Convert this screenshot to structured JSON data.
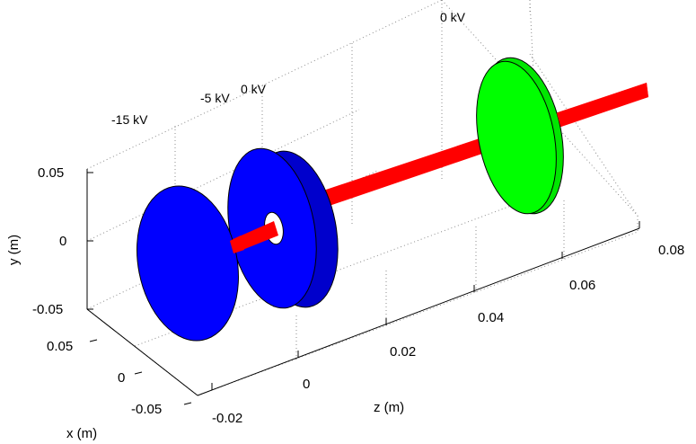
{
  "axes": {
    "x_label": "x (m)",
    "y_label": "y (m)",
    "z_label": "z (m)",
    "x_ticks": [
      "0.05",
      "0",
      "-0.05"
    ],
    "y_ticks": [
      "0.05",
      "0",
      "-0.05"
    ],
    "z_ticks": [
      "-0.02",
      "0",
      "0.02",
      "0.04",
      "0.06",
      "0.08"
    ]
  },
  "electrodes": [
    {
      "voltage_label": "-15 kV",
      "color": "#0000ff"
    },
    {
      "voltage_label": "-5 kV",
      "color": "#0000ff"
    },
    {
      "voltage_label": "0 kV",
      "color": "#0000ff"
    },
    {
      "voltage_label": "0 kV",
      "color": "#00ff00"
    }
  ],
  "beam": {
    "color": "#ff0000"
  }
}
